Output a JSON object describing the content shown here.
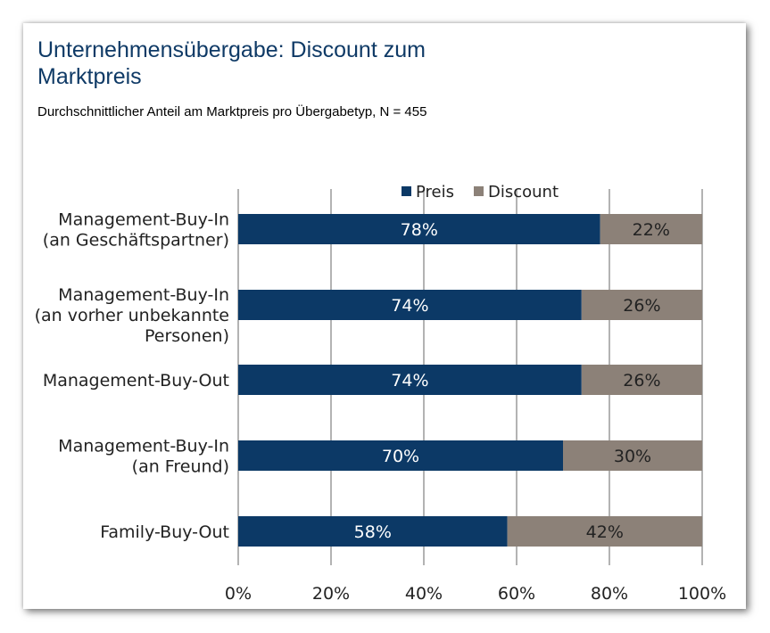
{
  "title": "Unternehmensübergabe: Discount zum Marktpreis",
  "subtitle": "Durchschnittlicher Anteil am Marktpreis pro Übergabetyp, N = 455",
  "colors": {
    "preis": "#0c3966",
    "discount": "#8c8178",
    "grid": "#8a8a8a",
    "title": "#0f3a66"
  },
  "chart_data": {
    "type": "bar",
    "orientation": "horizontal",
    "stacked": true,
    "categories": [
      [
        "Management-Buy-In",
        "(an Geschäftspartner)"
      ],
      [
        "Management-Buy-In",
        "(an vorher unbekannte",
        "Personen)"
      ],
      [
        "Management-Buy-Out"
      ],
      [
        "Management-Buy-In",
        "(an Freund)"
      ],
      [
        "Family-Buy-Out"
      ]
    ],
    "series": [
      {
        "name": "Preis",
        "values": [
          78,
          74,
          74,
          70,
          58
        ],
        "labels": [
          "78%",
          "74%",
          "74%",
          "70%",
          "58%"
        ]
      },
      {
        "name": "Discount",
        "values": [
          22,
          26,
          26,
          30,
          42
        ],
        "labels": [
          "22%",
          "26%",
          "26%",
          "30%",
          "42%"
        ]
      }
    ],
    "x_ticks": [
      "0%",
      "20%",
      "40%",
      "60%",
      "80%",
      "100%"
    ],
    "xlim": [
      0,
      100
    ],
    "grid": true,
    "legend": "top"
  }
}
